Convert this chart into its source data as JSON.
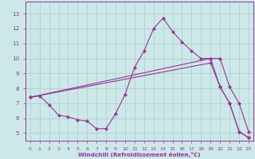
{
  "xlabel": "Windchill (Refroidissement éolien,°C)",
  "bg_color": "#cce8e8",
  "line_color": "#993399",
  "grid_color": "#aacccc",
  "xlim": [
    -0.5,
    23.5
  ],
  "ylim": [
    4.5,
    13.8
  ],
  "yticks": [
    5,
    6,
    7,
    8,
    9,
    10,
    11,
    12,
    13
  ],
  "xticks": [
    0,
    1,
    2,
    3,
    4,
    5,
    6,
    7,
    8,
    9,
    10,
    11,
    12,
    13,
    14,
    15,
    16,
    17,
    18,
    19,
    20,
    21,
    22,
    23
  ],
  "line1_x": [
    0,
    1,
    2,
    3,
    4,
    5,
    6,
    7,
    8,
    9,
    10,
    11,
    12,
    13,
    14,
    15,
    16,
    17,
    18,
    19,
    20,
    21,
    22,
    23
  ],
  "line1_y": [
    7.4,
    7.5,
    6.9,
    6.2,
    6.1,
    5.9,
    5.8,
    5.3,
    5.3,
    6.3,
    7.6,
    9.4,
    10.5,
    12.0,
    12.7,
    11.8,
    11.1,
    10.5,
    10.0,
    10.0,
    8.1,
    7.0,
    5.1,
    4.7
  ],
  "line2_x": [
    0,
    19,
    20,
    21,
    22,
    23
  ],
  "line2_y": [
    7.4,
    10.0,
    10.0,
    8.1,
    7.0,
    5.1
  ],
  "line3_x": [
    0,
    19,
    20,
    21,
    22,
    23
  ],
  "line3_y": [
    7.4,
    9.7,
    8.1,
    7.0,
    5.1,
    4.7
  ]
}
